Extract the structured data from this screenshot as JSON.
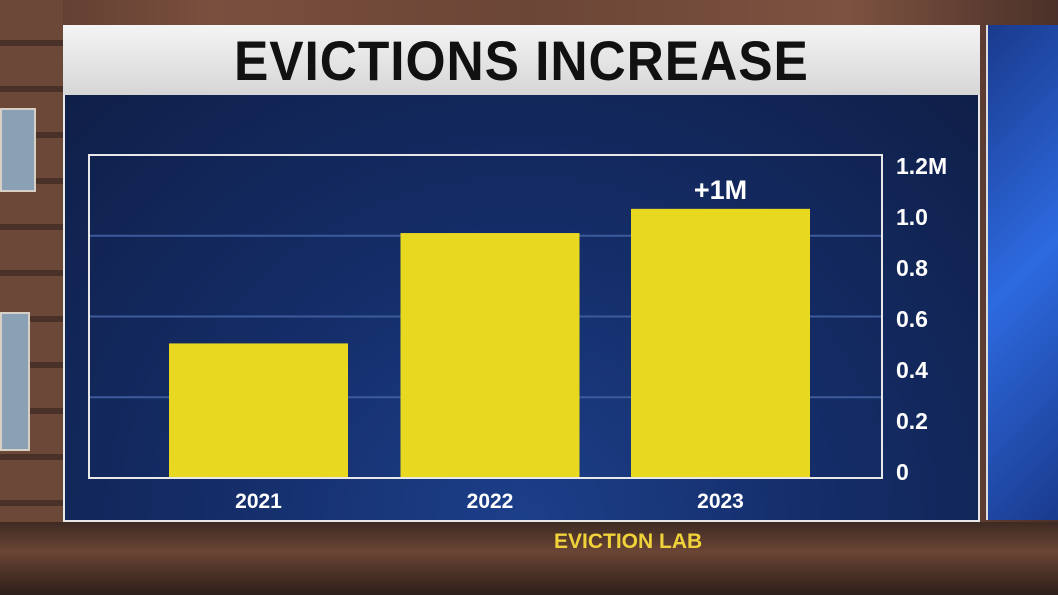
{
  "title": "EVICTIONS INCREASE",
  "source": "EVICTION LAB",
  "colors": {
    "bar": "#e9d820",
    "panel": "#15306b",
    "text": "#ffffff",
    "source": "#f0d23a"
  },
  "chart_data": {
    "type": "bar",
    "title": "EVICTIONS INCREASE",
    "categories": [
      "2021",
      "2022",
      "2023"
    ],
    "values": [
      0.5,
      0.91,
      1.0
    ],
    "ylim": [
      0,
      1.2
    ],
    "y_axis_position": "right",
    "y_tick_labels": [
      "0",
      "0.2",
      "0.4",
      "0.6",
      "0.8",
      "1.0",
      "1.2M"
    ],
    "y_ticks": [
      0,
      0.2,
      0.4,
      0.6,
      0.8,
      1.0,
      1.2
    ],
    "grid": true,
    "annotations": [
      {
        "category": "2023",
        "text": "+1M"
      }
    ]
  }
}
